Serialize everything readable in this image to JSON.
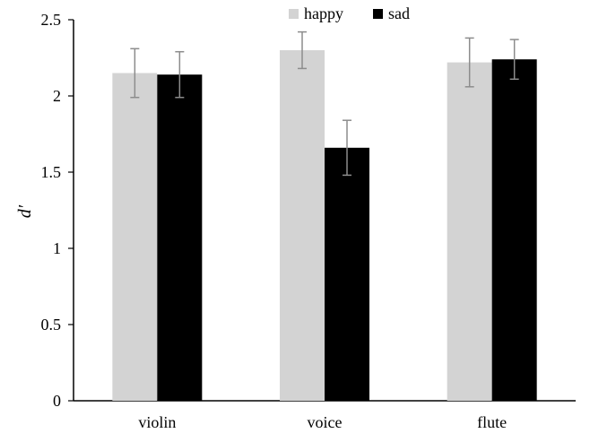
{
  "chart_data": {
    "type": "bar",
    "title": "",
    "xlabel": "",
    "ylabel": "d′",
    "categories": [
      "violin",
      "voice",
      "flute"
    ],
    "series": [
      {
        "name": "happy",
        "color": "#d3d3d3",
        "values": [
          2.15,
          2.3,
          2.22
        ],
        "errors": [
          0.16,
          0.12,
          0.16
        ]
      },
      {
        "name": "sad",
        "color": "#000000",
        "values": [
          2.14,
          1.66,
          2.24
        ],
        "errors": [
          0.15,
          0.18,
          0.13
        ]
      }
    ],
    "ylim": [
      0,
      2.5
    ],
    "yticks": [
      0,
      0.5,
      1,
      1.5,
      2,
      2.5
    ],
    "ytick_labels": [
      "0",
      "0.5",
      "1",
      "1.5",
      "2",
      "2.5"
    ],
    "grid": false,
    "legend_position": "top-center"
  }
}
